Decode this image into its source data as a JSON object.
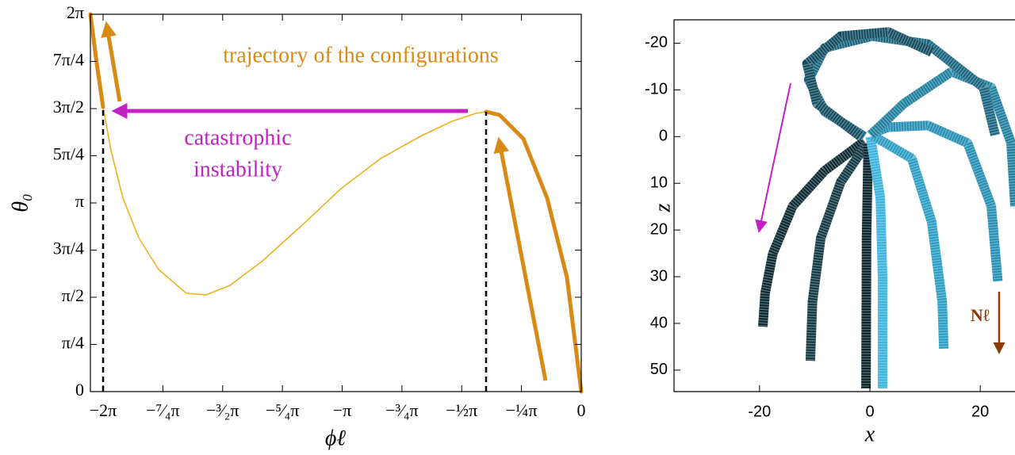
{
  "chart_data": [
    {
      "type": "line",
      "xlabel": "ϕℓ",
      "ylabel": "θ₀",
      "annotations": [
        "trajectory of the configurations",
        "catastrophic",
        "instability"
      ],
      "xlim": [
        -6.45,
        0
      ],
      "ylim": [
        0,
        6.2832
      ],
      "xticks": [
        {
          "value": -6.2832,
          "label": "−2π"
        },
        {
          "value": -5.4978,
          "label": "−⁷⁄₄π"
        },
        {
          "value": -4.7124,
          "label": "−³⁄₂π"
        },
        {
          "value": -3.927,
          "label": "−⁵⁄₄π"
        },
        {
          "value": -3.1416,
          "label": "−π"
        },
        {
          "value": -2.3562,
          "label": "−³⁄₄π"
        },
        {
          "value": -1.5708,
          "label": "−½π"
        },
        {
          "value": -0.7854,
          "label": "−¼π"
        },
        0
      ],
      "yticks": [
        0,
        {
          "value": 0.7854,
          "label": "π/4"
        },
        {
          "value": 1.5708,
          "label": "π/2"
        },
        {
          "value": 2.3562,
          "label": "3π/4"
        },
        {
          "value": 3.1416,
          "label": "π"
        },
        {
          "value": 3.927,
          "label": "5π/4"
        },
        {
          "value": 4.7124,
          "label": "3π/2"
        },
        {
          "value": 5.4978,
          "label": "7π/4"
        },
        {
          "value": 6.2832,
          "label": "2π"
        }
      ],
      "x": [
        -6.45,
        -6.367,
        -6.283,
        -6.179,
        -6.023,
        -5.814,
        -5.554,
        -5.189,
        -4.929,
        -4.616,
        -4.199,
        -3.678,
        -3.157,
        -2.636,
        -2.115,
        -1.698,
        -1.386,
        -1.25,
        -1.073,
        -0.761,
        -0.448,
        -0.188,
        0
      ],
      "series": [
        {
          "color": "#edb120",
          "linewidth": 1.6,
          "values": [
            6.283,
            5.465,
            4.739,
            4.013,
            3.221,
            2.561,
            2.033,
            1.637,
            1.61,
            1.769,
            2.165,
            2.759,
            3.379,
            3.881,
            4.25,
            4.501,
            4.633,
            4.66,
            4.607,
            4.211,
            3.221,
            1.901,
            0
          ]
        },
        {
          "color": "#d98a14",
          "linewidth": 5,
          "values": [
            6.283,
            5.465,
            4.739,
            null,
            null,
            null,
            null,
            null,
            null,
            null,
            null,
            null,
            null,
            null,
            null,
            null,
            null,
            4.66,
            4.607,
            4.211,
            3.221,
            1.901,
            0
          ]
        }
      ]
    },
    {
      "type": "line",
      "xlabel": "x",
      "ylabel": "z",
      "annotations": [
        "Nℓ"
      ],
      "xlim": [
        -35.5,
        26.3
      ],
      "ylim": [
        -25,
        54.6
      ],
      "y_reversed": true,
      "xticks": [
        -20,
        0,
        20
      ],
      "yticks": [
        -20,
        -10,
        0,
        10,
        20,
        30,
        40,
        50
      ],
      "hatched": true,
      "series": [
        {
          "color": "#0d2a33",
          "linewidth": 12,
          "x": [
            -1.0,
            -8.2,
            -14.0,
            -17.6,
            -19.0,
            -19.4
          ],
          "values": [
            1.0,
            7.3,
            14.9,
            25.1,
            33.6,
            40.7
          ]
        },
        {
          "color": "#143a46",
          "linewidth": 12,
          "x": [
            -0.7,
            -5.3,
            -8.9,
            -10.4,
            -10.8
          ],
          "values": [
            1.7,
            9.8,
            21.7,
            35.3,
            48.0
          ]
        },
        {
          "color": "#0b232b",
          "linewidth": 12,
          "x": [
            -0.3,
            -0.6,
            -0.7
          ],
          "values": [
            1.4,
            21.7,
            53.9
          ]
        },
        {
          "color": "#3bb3dc",
          "linewidth": 12,
          "x": [
            0.1,
            1.9,
            2.3,
            2.3
          ],
          "values": [
            0,
            13.2,
            30.2,
            53.9
          ]
        },
        {
          "color": "#2b9ec4",
          "linewidth": 12,
          "x": [
            0.4,
            7.6,
            11.2,
            13.1,
            13.4
          ],
          "values": [
            -0.3,
            4.7,
            18.3,
            35.3,
            45.4
          ]
        },
        {
          "color": "#2790b4",
          "linewidth": 12,
          "x": [
            0.4,
            3.3,
            10.5,
            17.7,
            22.0,
            23.2
          ],
          "values": [
            -0.7,
            -2.0,
            -2.4,
            1.4,
            14.9,
            31.0
          ]
        },
        {
          "color": "#21809f",
          "linewidth": 12,
          "x": [
            0.1,
            6.2,
            14.8,
            22.0,
            25.6,
            26.3
          ],
          "values": [
            -0.3,
            -7.1,
            -13.9,
            -10.5,
            1.4,
            14.9
          ]
        },
        {
          "color": "#1b6680",
          "linewidth": 12,
          "x": [
            -1.0,
            -8.2,
            -11.1,
            -8.2,
            0.4,
            10.5,
            20.6,
            22.7
          ],
          "values": [
            0,
            -5.4,
            -12.2,
            -19.0,
            -21.5,
            -19.8,
            -10.5,
            -0.3
          ]
        },
        {
          "color": "#144d60",
          "linewidth": 12,
          "x": [
            -1.7,
            -9.6,
            -11.4,
            -5.3,
            3.3,
            11.2
          ],
          "values": [
            0,
            -7.1,
            -15.6,
            -21.5,
            -22.4,
            -18.1
          ]
        }
      ]
    }
  ]
}
